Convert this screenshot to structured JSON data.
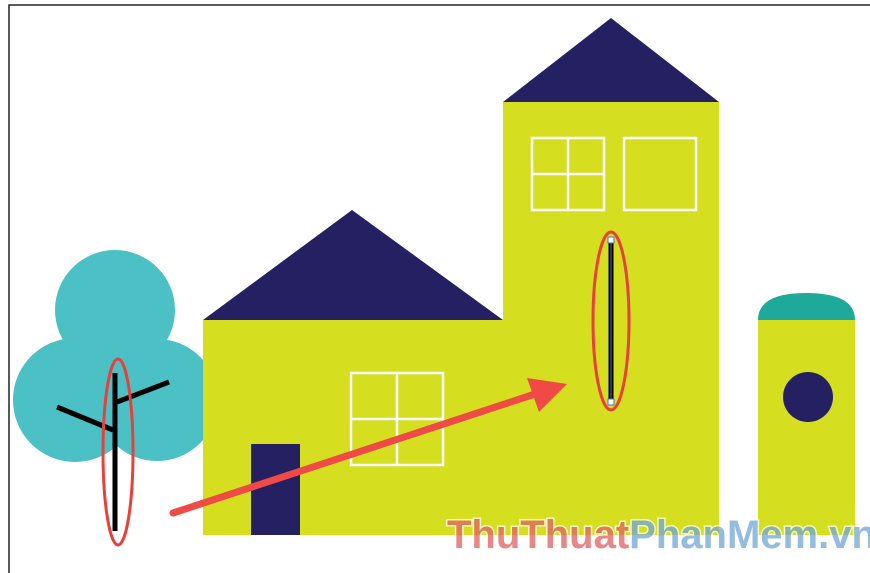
{
  "watermark": {
    "part1": "ThuThuat",
    "part2": "PhanMem",
    "part3": ".vn"
  }
}
